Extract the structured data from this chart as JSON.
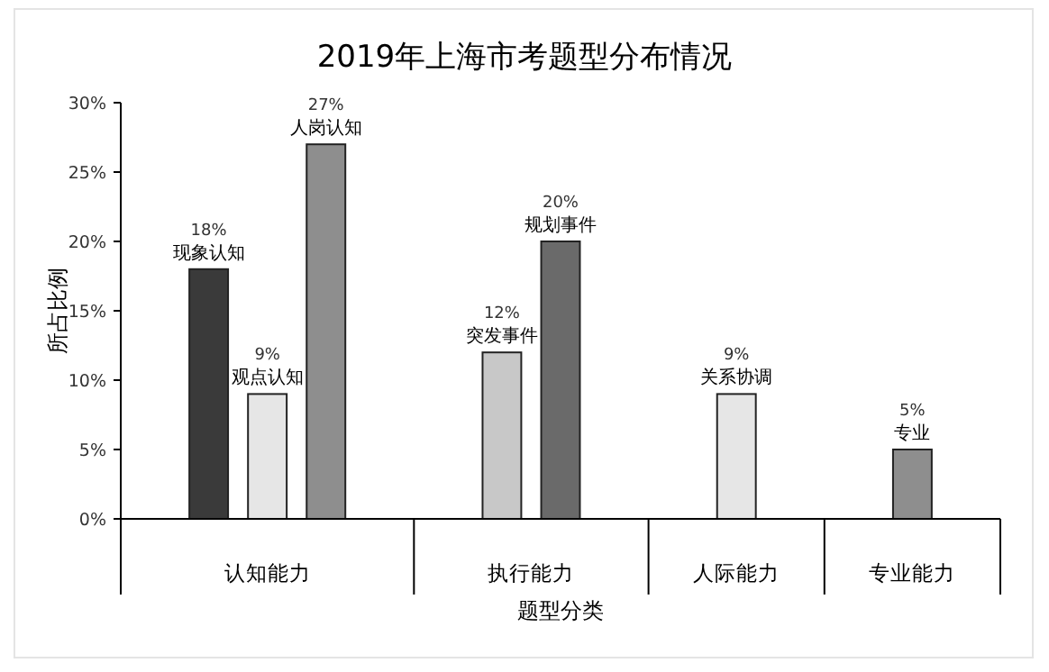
{
  "chart_data": {
    "type": "bar",
    "title": "2019年上海市考题型分布情况",
    "xlabel": "题型分类",
    "ylabel": "所占比例",
    "categories": [
      "认知能力",
      "执行能力",
      "人际能力",
      "专业能力"
    ],
    "series": [
      {
        "color": "#3a3a3a",
        "values": [
          18,
          null,
          null,
          null
        ],
        "value_labels": [
          "18%\n现象认知",
          null,
          null,
          null
        ]
      },
      {
        "colors": [
          "#e6e6e6",
          "#c8c8c8",
          "#e6e6e6",
          null
        ],
        "values": [
          9,
          12,
          9,
          null
        ],
        "value_labels": [
          "9%\n观点认知",
          "12%\n突发事件",
          "9%\n关系协调",
          null
        ]
      },
      {
        "colors": [
          "#8e8e8e",
          "#6a6a6a",
          null,
          "#8e8e8e"
        ],
        "values": [
          27,
          20,
          null,
          5
        ],
        "value_labels": [
          "27%\n人岗认知",
          "20%\n规划事件",
          null,
          "5%\n专业"
        ]
      }
    ],
    "ylim": [
      0,
      30
    ],
    "yticks": [
      {
        "value": 0,
        "label": "0%"
      },
      {
        "value": 5,
        "label": "5%"
      },
      {
        "value": 10,
        "label": "10%"
      },
      {
        "value": 15,
        "label": "15%"
      },
      {
        "value": 20,
        "label": "20%"
      },
      {
        "value": 25,
        "label": "25%"
      },
      {
        "value": 30,
        "label": "30%"
      }
    ],
    "grid": false
  }
}
